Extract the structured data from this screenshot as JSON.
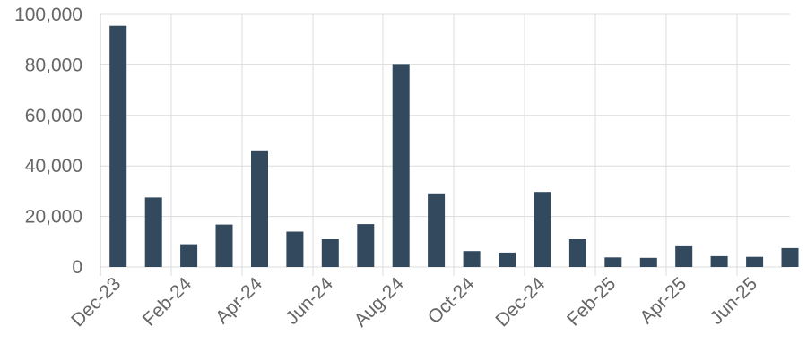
{
  "chart_data": {
    "type": "bar",
    "title": "",
    "xlabel": "",
    "ylabel": "",
    "ylim": [
      0,
      100000
    ],
    "grid": true,
    "legend": "none",
    "bar_color": "#33495e",
    "y_ticks": [
      0,
      20000,
      40000,
      60000,
      80000,
      100000
    ],
    "y_tick_labels": [
      "0",
      "20,000",
      "40,000",
      "60,000",
      "80,000",
      "100,000"
    ],
    "categories": [
      "Dec-23",
      "Jan-24",
      "Feb-24",
      "Mar-24",
      "Apr-24",
      "May-24",
      "Jun-24",
      "Jul-24",
      "Aug-24",
      "Sep-24",
      "Oct-24",
      "Nov-24",
      "Dec-24",
      "Jan-25",
      "Feb-25",
      "Mar-25",
      "Apr-25",
      "May-25",
      "Jun-25",
      "Jul-25"
    ],
    "x_tick_labels": [
      "Dec-23",
      "Feb-24",
      "Apr-24",
      "Jun-24",
      "Aug-24",
      "Oct-24",
      "Dec-24",
      "Feb-25",
      "Apr-25",
      "Jun-25"
    ],
    "values": [
      95500,
      27500,
      9000,
      16800,
      45800,
      14000,
      11000,
      17000,
      80000,
      28800,
      6300,
      5700,
      29700,
      11000,
      3800,
      3600,
      8200,
      4300,
      4000,
      7500
    ]
  }
}
